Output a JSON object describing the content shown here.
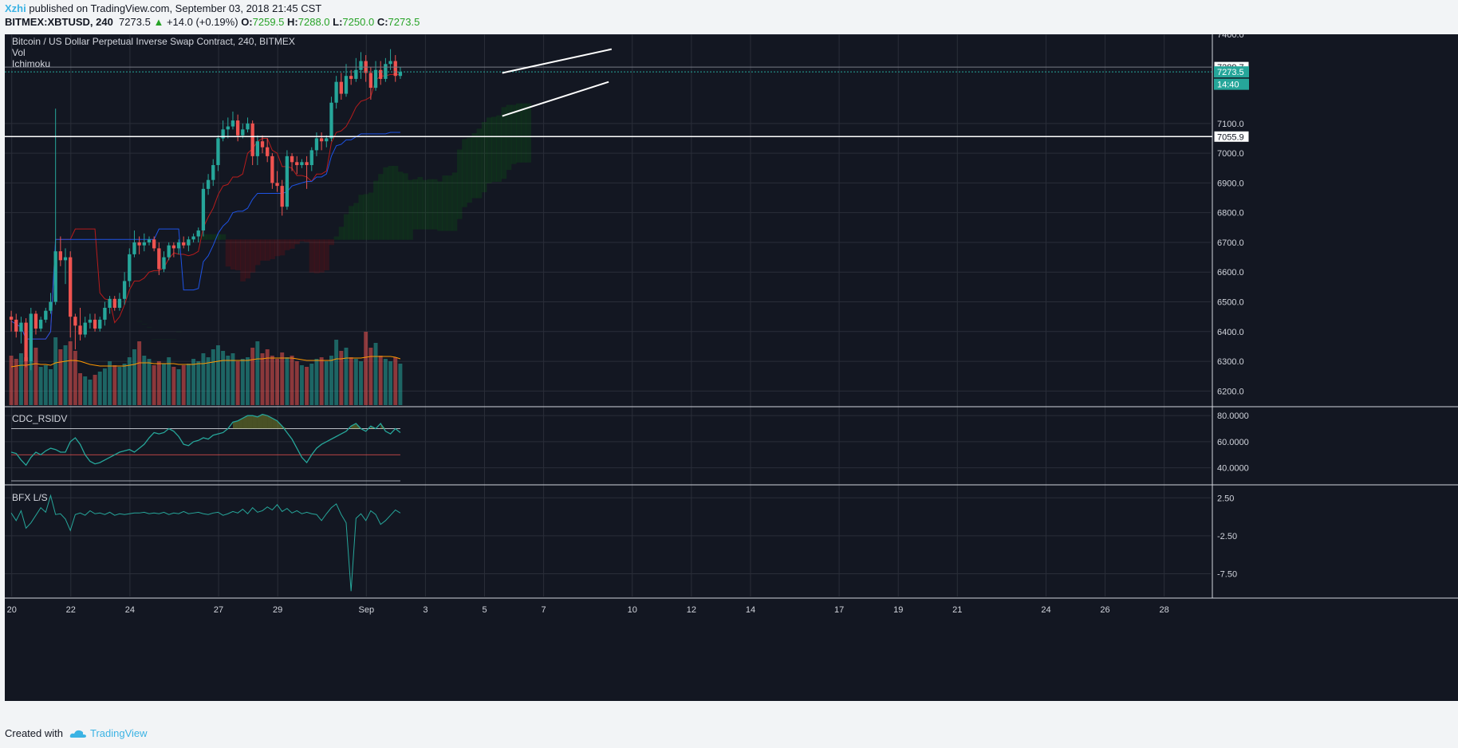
{
  "header": {
    "author": "Xzhi",
    "published": "published on TradingView.com, September 03, 2018 21:45 CST",
    "symbol": "BITMEX:XBTUSD, 240",
    "last": "7273.5",
    "change": "+14.0 (+0.19%)",
    "o_label": "O:",
    "o": "7259.5",
    "h_label": "H:",
    "h": "7288.0",
    "l_label": "L:",
    "l": "7250.0",
    "c_label": "C:",
    "c": "7273.5"
  },
  "footer": {
    "created": "Created with",
    "brand": "TradingView"
  },
  "colors": {
    "bg": "#131722",
    "up": "#26a69a",
    "down": "#ef5350",
    "grid": "#2a2e39",
    "kijun": "#1e53e5",
    "tenkan": "#b71c1c",
    "cloud_bear": "#ff0000",
    "cloud_bull": "#00aa00",
    "vol_ma": "#ff9800",
    "rsi": "#26a69a",
    "bfx": "#26a69a"
  },
  "chart_data": {
    "type": "candlestick",
    "title": "Bitcoin / US Dollar Perpetual Inverse Swap Contract, 240, BITMEX",
    "indicators": [
      "Vol",
      "Ichimoku"
    ],
    "x_ticks": [
      "20",
      "22",
      "24",
      "27",
      "29",
      "Sep",
      "3",
      "5",
      "7",
      "10",
      "12",
      "14",
      "17",
      "19",
      "21",
      "24",
      "26",
      "28"
    ],
    "y_ticks": [
      6200,
      6300,
      6400,
      6500,
      6600,
      6700,
      6800,
      6900,
      7000,
      7100,
      7400
    ],
    "ylim": [
      6150,
      7400
    ],
    "bars_per_day": 6,
    "start_day_index": -0.1,
    "price_labels": [
      {
        "text": "7289.7",
        "value": 7289.7,
        "style": "outline"
      },
      {
        "text": "7273.5",
        "value": 7273.5,
        "style": "current"
      },
      {
        "text": "14:40",
        "value": 7232,
        "style": "current"
      },
      {
        "text": "7055.9",
        "value": 7055.9,
        "style": "outline"
      }
    ],
    "horizontal_lines": [
      7055.9,
      7289.7
    ],
    "last_price": 7273.5,
    "channel": {
      "upper": [
        [
          16.6,
          7270
        ],
        [
          20.3,
          7350
        ]
      ],
      "lower": [
        [
          16.6,
          7125
        ],
        [
          20.2,
          7240
        ]
      ]
    },
    "ohlc": [
      [
        6450,
        6470,
        6400,
        6440
      ],
      [
        6440,
        6460,
        6380,
        6400
      ],
      [
        6400,
        6450,
        6360,
        6430
      ],
      [
        6430,
        6445,
        6280,
        6300
      ],
      [
        6300,
        6480,
        6270,
        6460
      ],
      [
        6460,
        6470,
        6390,
        6410
      ],
      [
        6410,
        6450,
        6400,
        6440
      ],
      [
        6440,
        6480,
        6430,
        6470
      ],
      [
        6470,
        6530,
        6460,
        6500
      ],
      [
        6500,
        7150,
        6490,
        6670
      ],
      [
        6670,
        6720,
        6620,
        6640
      ],
      [
        6640,
        6680,
        6560,
        6650
      ],
      [
        6650,
        6670,
        6380,
        6450
      ],
      [
        6450,
        6460,
        6340,
        6420
      ],
      [
        6420,
        6480,
        6370,
        6390
      ],
      [
        6390,
        6450,
        6380,
        6430
      ],
      [
        6430,
        6460,
        6410,
        6440
      ],
      [
        6440,
        6460,
        6400,
        6410
      ],
      [
        6410,
        6450,
        6400,
        6440
      ],
      [
        6440,
        6500,
        6420,
        6480
      ],
      [
        6480,
        6520,
        6460,
        6510
      ],
      [
        6510,
        6520,
        6470,
        6480
      ],
      [
        6480,
        6530,
        6470,
        6510
      ],
      [
        6510,
        6600,
        6490,
        6570
      ],
      [
        6570,
        6680,
        6550,
        6660
      ],
      [
        6660,
        6740,
        6650,
        6700
      ],
      [
        6700,
        6720,
        6660,
        6690
      ],
      [
        6690,
        6730,
        6670,
        6700
      ],
      [
        6700,
        6720,
        6690,
        6710
      ],
      [
        6710,
        6720,
        6670,
        6680
      ],
      [
        6680,
        6700,
        6590,
        6610
      ],
      [
        6610,
        6670,
        6600,
        6650
      ],
      [
        6650,
        6700,
        6640,
        6690
      ],
      [
        6690,
        6700,
        6650,
        6680
      ],
      [
        6680,
        6710,
        6660,
        6700
      ],
      [
        6700,
        6720,
        6680,
        6690
      ],
      [
        6690,
        6720,
        6670,
        6710
      ],
      [
        6710,
        6730,
        6700,
        6720
      ],
      [
        6720,
        6750,
        6700,
        6740
      ],
      [
        6740,
        6900,
        6720,
        6880
      ],
      [
        6880,
        6930,
        6860,
        6910
      ],
      [
        6910,
        6980,
        6890,
        6960
      ],
      [
        6960,
        7060,
        6940,
        7050
      ],
      [
        7050,
        7110,
        7040,
        7080
      ],
      [
        7080,
        7120,
        7050,
        7090
      ],
      [
        7090,
        7140,
        7080,
        7110
      ],
      [
        7110,
        7130,
        7040,
        7060
      ],
      [
        7060,
        7100,
        7050,
        7080
      ],
      [
        7080,
        7120,
        7070,
        7100
      ],
      [
        7100,
        7110,
        6960,
        6990
      ],
      [
        6990,
        7060,
        6960,
        7040
      ],
      [
        7040,
        7060,
        7000,
        7020
      ],
      [
        7020,
        7050,
        6970,
        6990
      ],
      [
        6990,
        7000,
        6880,
        6900
      ],
      [
        6900,
        6940,
        6870,
        6890
      ],
      [
        6890,
        6910,
        6790,
        6820
      ],
      [
        6820,
        7010,
        6810,
        6990
      ],
      [
        6990,
        7000,
        6940,
        6970
      ],
      [
        6970,
        6990,
        6930,
        6960
      ],
      [
        6960,
        6980,
        6950,
        6970
      ],
      [
        6970,
        6990,
        6880,
        6960
      ],
      [
        6960,
        7020,
        6940,
        7010
      ],
      [
        7010,
        7070,
        6990,
        7050
      ],
      [
        7050,
        7070,
        7010,
        7040
      ],
      [
        7040,
        7060,
        7020,
        7050
      ],
      [
        7050,
        7190,
        7040,
        7170
      ],
      [
        7170,
        7260,
        7150,
        7240
      ],
      [
        7240,
        7270,
        7180,
        7200
      ],
      [
        7200,
        7300,
        7190,
        7260
      ],
      [
        7260,
        7280,
        7230,
        7250
      ],
      [
        7250,
        7320,
        7240,
        7280
      ],
      [
        7280,
        7340,
        7250,
        7310
      ],
      [
        7310,
        7330,
        7240,
        7270
      ],
      [
        7270,
        7290,
        7180,
        7220
      ],
      [
        7220,
        7310,
        7210,
        7280
      ],
      [
        7280,
        7310,
        7230,
        7250
      ],
      [
        7250,
        7320,
        7240,
        7300
      ],
      [
        7300,
        7350,
        7280,
        7310
      ],
      [
        7310,
        7330,
        7240,
        7260
      ],
      [
        7260,
        7290,
        7250,
        7273.5
      ]
    ],
    "volume": [
      62,
      58,
      65,
      60,
      55,
      72,
      48,
      50,
      45,
      85,
      70,
      75,
      80,
      68,
      40,
      36,
      32,
      38,
      42,
      46,
      55,
      50,
      48,
      52,
      60,
      70,
      80,
      62,
      58,
      50,
      55,
      52,
      60,
      48,
      45,
      50,
      52,
      58,
      55,
      65,
      60,
      70,
      75,
      68,
      62,
      65,
      55,
      58,
      60,
      72,
      80,
      65,
      70,
      62,
      58,
      66,
      60,
      62,
      55,
      50,
      48,
      52,
      58,
      60,
      55,
      62,
      82,
      68,
      72,
      60,
      58,
      55,
      92,
      72,
      78,
      62,
      58,
      55,
      60,
      52
    ],
    "volume_ma": [
      48,
      49,
      50,
      50,
      51,
      52,
      51,
      51,
      50,
      53,
      54,
      55,
      56,
      56,
      55,
      53,
      51,
      50,
      49,
      49,
      49,
      49,
      49,
      49,
      50,
      51,
      53,
      53,
      53,
      52,
      52,
      52,
      52,
      52,
      51,
      51,
      51,
      51,
      52,
      52,
      53,
      54,
      55,
      56,
      56,
      56,
      56,
      56,
      56,
      57,
      58,
      58,
      59,
      59,
      59,
      59,
      59,
      59,
      58,
      57,
      56,
      56,
      56,
      56,
      56,
      56,
      58,
      58,
      59,
      59,
      59,
      59,
      60,
      61,
      61,
      61,
      61,
      61,
      60,
      58
    ],
    "cdc_rsidv": {
      "ylim": [
        30,
        85
      ],
      "y_ticks": [
        40,
        60,
        80
      ],
      "overbought": 70,
      "mid": 50,
      "oversold": 30,
      "values": [
        52,
        51,
        46,
        42,
        48,
        52,
        50,
        53,
        55,
        54,
        52,
        52,
        60,
        63,
        58,
        50,
        45,
        43,
        44,
        46,
        48,
        50,
        52,
        53,
        54,
        52,
        55,
        58,
        63,
        67,
        66,
        67,
        70,
        68,
        64,
        58,
        57,
        60,
        61,
        63,
        62,
        65,
        66,
        67,
        70,
        75,
        76,
        78,
        80,
        80,
        79,
        81,
        80,
        78,
        76,
        72,
        67,
        62,
        55,
        48,
        44,
        50,
        55,
        58,
        60,
        62,
        64,
        66,
        68,
        72,
        74,
        70,
        68,
        72,
        70,
        74,
        68,
        66,
        70,
        67
      ]
    },
    "bfx_ls": {
      "ylim": [
        -10.5,
        4
      ],
      "y_ticks": [
        2.5,
        -2.5,
        -7.5
      ],
      "values": [
        0.5,
        -0.5,
        0.8,
        -1.5,
        -0.8,
        0.2,
        1.2,
        0.6,
        2.8,
        0.3,
        0.4,
        -0.3,
        -1.8,
        0.3,
        0.5,
        0.2,
        0.8,
        0.4,
        0.5,
        0.3,
        0.6,
        0.2,
        0.4,
        0.3,
        0.4,
        0.5,
        0.5,
        0.6,
        0.4,
        0.5,
        0.4,
        0.6,
        0.3,
        0.5,
        0.4,
        0.7,
        0.4,
        0.5,
        0.6,
        0.4,
        0.3,
        0.5,
        0.6,
        0.2,
        0.4,
        0.7,
        0.5,
        1.0,
        0.4,
        1.2,
        0.6,
        0.8,
        1.3,
        0.9,
        1.6,
        0.7,
        1.1,
        0.5,
        0.8,
        0.4,
        0.6,
        0.4,
        0.3,
        -0.5,
        0.4,
        1.2,
        1.7,
        0.3,
        -0.8,
        -9.8,
        -0.2,
        0.4,
        -0.5,
        0.8,
        0.3,
        -1.0,
        -0.5,
        0.2,
        0.9,
        0.5
      ]
    }
  }
}
